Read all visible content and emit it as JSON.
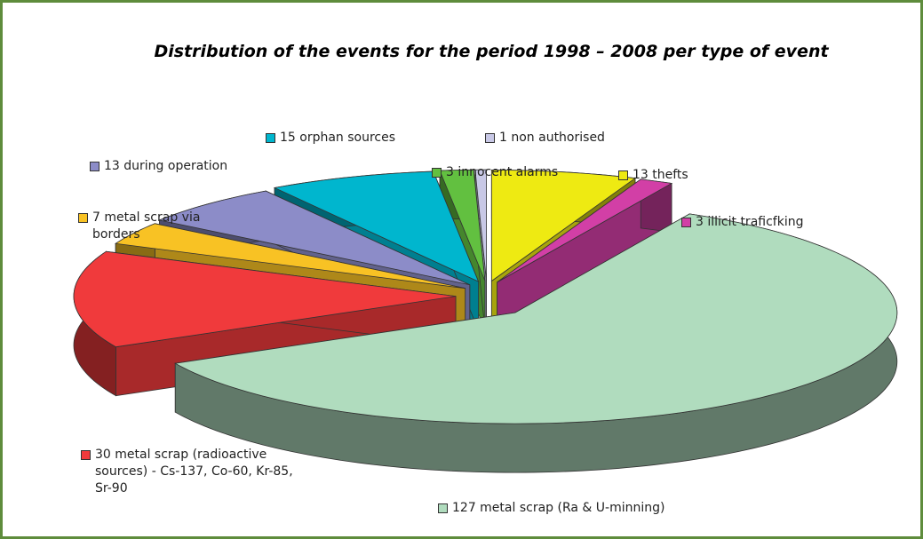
{
  "chart_data": {
    "type": "pie",
    "title": "Distribution of the events for the period 1998 – 2008 per type of event",
    "categories": [
      "13 thefts",
      "3 illicit traficfking",
      "127 metal scrap (Ra & U-minning)",
      "30 metal scrap (radioactive sources) - Cs-137, Co-60, Kr-85, Sr-90",
      "7 metal scrap via borders",
      "13 during operation",
      "15 orphan sources",
      "3 innocent alarms",
      "1 non authorised"
    ],
    "values": [
      13,
      3,
      127,
      30,
      7,
      13,
      15,
      3,
      1
    ],
    "colors": [
      "#eeea12",
      "#d23fa6",
      "#b0dcbe",
      "#f03a3c",
      "#f8c224",
      "#8c8cc8",
      "#00b6ce",
      "#62c040",
      "#c8c8e6"
    ]
  }
}
